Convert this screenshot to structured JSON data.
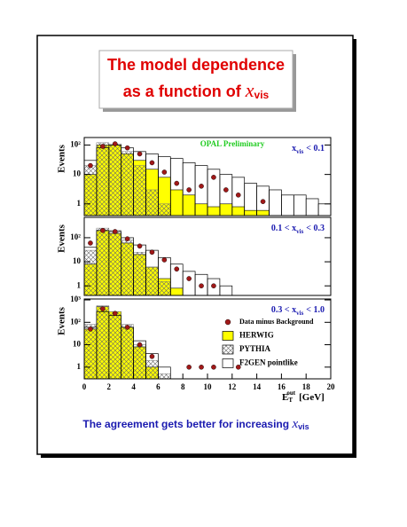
{
  "title": {
    "line1": "The model dependence",
    "line2": "as a function of",
    "var": "x",
    "sub": "vis"
  },
  "footer": {
    "text": "The agreement gets better for increasing",
    "var": "x",
    "sub": "vis"
  },
  "x_axis_label": {
    "main": "E",
    "sub": "T",
    "sup": "out",
    "unit": "[GeV]"
  },
  "chart_data": [
    {
      "type": "histogram",
      "y_label": "Events",
      "annotation": "OPAL Preliminary",
      "label": {
        "var": "x",
        "sub": "vis",
        "post": "< 0.1"
      },
      "bins": [
        0,
        1,
        2,
        3,
        4,
        5,
        6,
        7,
        8,
        9,
        10,
        11,
        12,
        13,
        14,
        15,
        16,
        17,
        18,
        19,
        20
      ],
      "xlim": [
        0,
        20
      ],
      "ylim": [
        0.4,
        180
      ],
      "log_y": true,
      "yticks": [
        1,
        10,
        {
          "value": 100,
          "label": "10²"
        }
      ],
      "series": [
        {
          "style": "filled",
          "color": "#ffff00",
          "values": [
            10,
            100,
            100,
            50,
            30,
            15,
            8,
            3,
            2,
            1,
            0.8,
            1,
            0.8,
            0.6,
            0.6,
            0,
            0,
            0,
            0,
            0
          ]
        },
        {
          "style": "hatched",
          "color": "#777777",
          "values": [
            20,
            120,
            110,
            60,
            20,
            3,
            1,
            0,
            0,
            0,
            0,
            0,
            0,
            0,
            0,
            0,
            0,
            0,
            0,
            0
          ]
        },
        {
          "style": "open",
          "color": "#000000",
          "values": [
            30,
            80,
            100,
            80,
            60,
            50,
            40,
            35,
            25,
            20,
            15,
            10,
            8,
            5,
            4,
            3,
            2,
            2,
            1.5,
            1
          ]
        },
        {
          "style": "points",
          "color": "#a01818",
          "x": [
            0.5,
            1.5,
            2.5,
            3.5,
            4.5,
            5.5,
            6.5,
            7.5,
            8.5,
            9.5,
            10.5,
            11.5,
            12.5,
            14.5
          ],
          "values": [
            20,
            90,
            110,
            80,
            50,
            25,
            12,
            5,
            3,
            4,
            8,
            3,
            2,
            1.2
          ]
        }
      ]
    },
    {
      "type": "histogram",
      "y_label": "Events",
      "label": {
        "pre": "0.1 <",
        "var": "x",
        "sub": "vis",
        "post": "< 0.3"
      },
      "bins": [
        0,
        1,
        2,
        3,
        4,
        5,
        6,
        7,
        8,
        9,
        10,
        11,
        12,
        13,
        14,
        15,
        16,
        17,
        18,
        19,
        20
      ],
      "xlim": [
        0,
        20
      ],
      "ylim": [
        0.4,
        700
      ],
      "log_y": true,
      "yticks": [
        1,
        10,
        {
          "value": 100,
          "label": "10²"
        }
      ],
      "series": [
        {
          "style": "filled",
          "color": "#ffff00",
          "values": [
            8,
            200,
            150,
            60,
            20,
            6,
            2,
            0.8,
            0,
            0,
            0,
            0,
            0,
            0,
            0,
            0,
            0,
            0,
            0,
            0
          ]
        },
        {
          "style": "hatched",
          "color": "#777777",
          "values": [
            30,
            250,
            200,
            80,
            25,
            6,
            1.5,
            0,
            0,
            0,
            0,
            0,
            0,
            0,
            0,
            0,
            0,
            0,
            0,
            0
          ]
        },
        {
          "style": "open",
          "color": "#000000",
          "values": [
            40,
            200,
            180,
            100,
            50,
            30,
            15,
            8,
            4,
            3,
            2,
            1,
            0,
            0,
            0,
            0,
            0,
            0,
            0,
            0
          ]
        },
        {
          "style": "points",
          "color": "#a01818",
          "x": [
            0.5,
            1.5,
            2.5,
            3.5,
            4.5,
            5.5,
            6.5,
            7.5,
            8.5,
            9.5,
            10.5
          ],
          "values": [
            60,
            200,
            180,
            90,
            45,
            25,
            12,
            5,
            2,
            1,
            1
          ]
        }
      ]
    },
    {
      "type": "histogram",
      "y_label": "Events",
      "label": {
        "pre": "0.3 <",
        "var": "x",
        "sub": "vis",
        "post": "< 1.0"
      },
      "bins": [
        0,
        1,
        2,
        3,
        4,
        5,
        6,
        7,
        8,
        9,
        10,
        11,
        12,
        13,
        14,
        15,
        16,
        17,
        18,
        19,
        20
      ],
      "xlim": [
        0,
        20
      ],
      "ylim": [
        0.3,
        1100
      ],
      "log_y": true,
      "yticks": [
        1,
        10,
        {
          "value": 100,
          "label": "10²"
        },
        {
          "value": 1000,
          "label": "10³"
        }
      ],
      "xticks": [
        0,
        2,
        4,
        6,
        8,
        10,
        12,
        14,
        16,
        18,
        20
      ],
      "series": [
        {
          "name": "HERWIG",
          "style": "filled",
          "color": "#ffff00",
          "values": [
            50,
            500,
            300,
            60,
            8,
            1,
            0,
            0,
            0,
            0,
            0,
            0,
            0,
            0,
            0,
            0,
            0,
            0,
            0,
            0
          ]
        },
        {
          "name": "PYTHIA",
          "style": "hatched",
          "color": "#777777",
          "values": [
            80,
            550,
            300,
            80,
            10,
            2,
            0.5,
            0,
            0,
            0,
            0,
            0,
            0,
            0,
            0,
            0,
            0,
            0,
            0,
            0
          ]
        },
        {
          "name": "F2GEN pointlike",
          "style": "open",
          "color": "#000000",
          "values": [
            60,
            300,
            200,
            60,
            15,
            4,
            1,
            0,
            0,
            0,
            0,
            0,
            0,
            0,
            0,
            0,
            0,
            0,
            0,
            0
          ]
        },
        {
          "name": "Data minus Background",
          "style": "points",
          "color": "#a01818",
          "x": [
            0.5,
            1.5,
            2.5,
            3.5,
            4.5,
            5.5,
            8.5,
            9.5,
            10.5,
            12.5
          ],
          "values": [
            50,
            400,
            250,
            60,
            10,
            3,
            1,
            1,
            1,
            1
          ]
        }
      ]
    }
  ]
}
